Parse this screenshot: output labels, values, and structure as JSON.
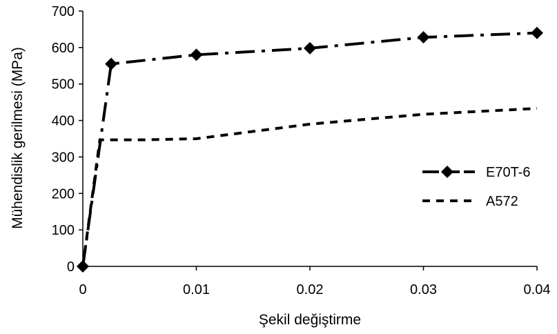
{
  "chart_data": {
    "type": "line",
    "title": "",
    "xlabel": "Şekil değiştirme",
    "ylabel": "Mühendislik gerilmesi (MPa)",
    "xlim": [
      0,
      0.04
    ],
    "ylim": [
      0,
      700
    ],
    "x_ticks": [
      "0",
      "0.01",
      "0.02",
      "0.03",
      "0.04"
    ],
    "y_ticks": [
      "0",
      "100",
      "200",
      "300",
      "400",
      "500",
      "600",
      "700"
    ],
    "grid": false,
    "legend_position": "right",
    "series": [
      {
        "name": "E70T-6",
        "style": "dash-dot",
        "marker": "diamond",
        "color": "#000000",
        "x": [
          0,
          0.0025,
          0.01,
          0.02,
          0.03,
          0.04
        ],
        "y": [
          0,
          555,
          580,
          598,
          628,
          640
        ]
      },
      {
        "name": "A572",
        "style": "dotted",
        "marker": "none",
        "color": "#000000",
        "x": [
          0,
          0.0015,
          0.0055,
          0.01,
          0.02,
          0.03,
          0.04
        ],
        "y": [
          0,
          347,
          347,
          350,
          390,
          417,
          433
        ]
      }
    ]
  }
}
